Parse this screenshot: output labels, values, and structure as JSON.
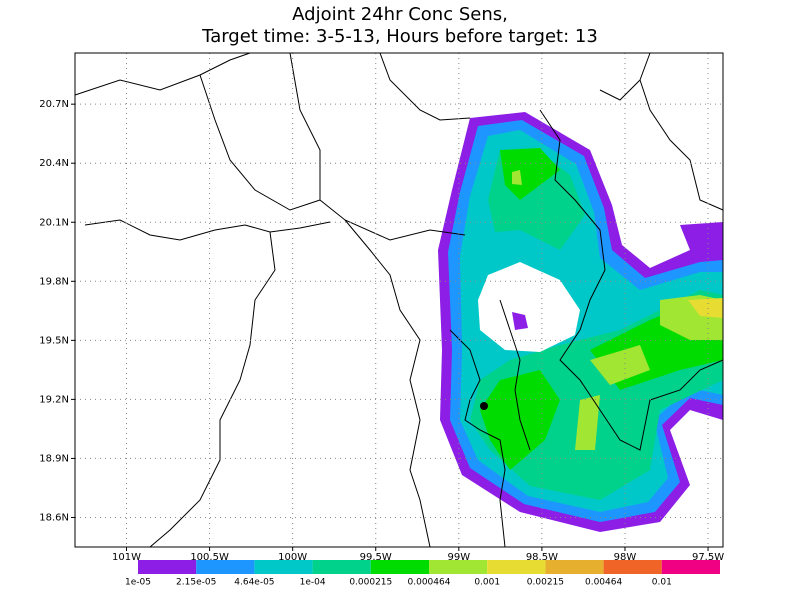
{
  "header": {
    "title_lines": [
      "Adjoint 24hr Conc Sens,",
      "Target time: 3-5-13, Hours before target: 13"
    ]
  },
  "map": {
    "xlim": [
      -101.31,
      -97.41
    ],
    "ylim": [
      18.45,
      20.96
    ],
    "xticks": [
      {
        "value": -101,
        "label": "101W"
      },
      {
        "value": -100.5,
        "label": "100.5W"
      },
      {
        "value": -100,
        "label": "100W"
      },
      {
        "value": -99.5,
        "label": "99.5W"
      },
      {
        "value": -99,
        "label": "99W"
      },
      {
        "value": -98.5,
        "label": "98.5W"
      },
      {
        "value": -98,
        "label": "98W"
      },
      {
        "value": -97.5,
        "label": "97.5W"
      }
    ],
    "yticks": [
      {
        "value": 18.6,
        "label": "18.6N"
      },
      {
        "value": 18.9,
        "label": "18.9N"
      },
      {
        "value": 19.2,
        "label": "19.2N"
      },
      {
        "value": 19.5,
        "label": "19.5N"
      },
      {
        "value": 19.8,
        "label": "19.8N"
      },
      {
        "value": 20.1,
        "label": "20.1N"
      },
      {
        "value": 20.4,
        "label": "20.4N"
      },
      {
        "value": 20.7,
        "label": "20.7N"
      }
    ],
    "grid": true
  },
  "colorbar": {
    "levels": [
      {
        "value": 1e-05,
        "label": "1e-05"
      },
      {
        "value": 2.15e-05,
        "label": "2.15e-05"
      },
      {
        "value": 4.64e-05,
        "label": "4.64e-05"
      },
      {
        "value": 0.0001,
        "label": "1e-04"
      },
      0.000215,
      0.000464,
      0.001,
      0.00215,
      0.00464,
      0.01
    ],
    "colors": [
      "#8c1ee6",
      "#1e96ff",
      "#00c8c8",
      "#00d28c",
      "#00dc00",
      "#a0e632",
      "#e6dc32",
      "#e6af2d",
      "#f06428",
      "#f00082"
    ]
  }
}
